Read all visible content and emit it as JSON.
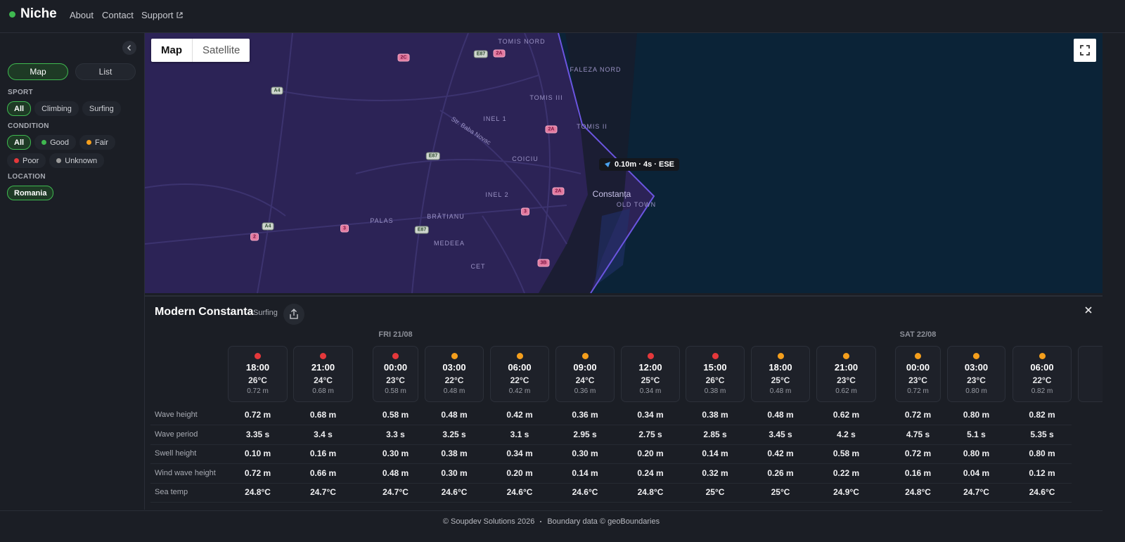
{
  "header": {
    "brand": "Niche",
    "nav": [
      "About",
      "Contact",
      "Support"
    ]
  },
  "sidebar": {
    "view_tabs": [
      "Map",
      "List"
    ],
    "filters": [
      {
        "label": "SPORT",
        "options": [
          {
            "name": "All"
          },
          {
            "name": "Climbing"
          },
          {
            "name": "Surfing"
          }
        ]
      },
      {
        "label": "CONDITION",
        "options": [
          {
            "name": "All"
          },
          {
            "name": "Good",
            "color": "#3fb950"
          },
          {
            "name": "Fair",
            "color": "#f59f1c"
          },
          {
            "name": "Poor",
            "color": "#e5383b"
          },
          {
            "name": "Unknown",
            "color": "#9a9a9a"
          }
        ]
      },
      {
        "label": "LOCATION",
        "options": [
          {
            "name": "Romania"
          }
        ]
      }
    ]
  },
  "map": {
    "tabs": [
      "Map",
      "Satellite"
    ],
    "places": [
      "TOMIS NORD",
      "FALEZA NORD",
      "TOMIS III",
      "INEL 1",
      "TOMIS II",
      "COICIU",
      "Constanța",
      "OLD TOWN",
      "INEL 2",
      "PALAS",
      "BRĂTIANU",
      "MEDEEA",
      "CET",
      "Str. Baba Novac"
    ],
    "road_shields": [
      "E87",
      "2A",
      "2C",
      "A4",
      "2A",
      "E87",
      "2A",
      "3",
      "A4",
      "3",
      "E87",
      "2",
      "3B"
    ],
    "tooltip": "0.10m · 4s · ESE"
  },
  "spot": {
    "name": "Modern Constanta",
    "sport": "Surfing",
    "days": [
      "FRI 21/08",
      "SAT 22/08"
    ],
    "slots": [
      {
        "time": "18:00",
        "temp": "26°C",
        "wave": "0.72 m",
        "color": "#e5383b"
      },
      {
        "time": "21:00",
        "temp": "24°C",
        "wave": "0.68 m",
        "color": "#e5383b"
      },
      {
        "time": "00:00",
        "temp": "23°C",
        "wave": "0.58 m",
        "color": "#e5383b"
      },
      {
        "time": "03:00",
        "temp": "22°C",
        "wave": "0.48 m",
        "color": "#f59f1c"
      },
      {
        "time": "06:00",
        "temp": "22°C",
        "wave": "0.42 m",
        "color": "#f59f1c"
      },
      {
        "time": "09:00",
        "temp": "24°C",
        "wave": "0.36 m",
        "color": "#f59f1c"
      },
      {
        "time": "12:00",
        "temp": "25°C",
        "wave": "0.34 m",
        "color": "#e5383b"
      },
      {
        "time": "15:00",
        "temp": "26°C",
        "wave": "0.38 m",
        "color": "#e5383b"
      },
      {
        "time": "18:00",
        "temp": "25°C",
        "wave": "0.48 m",
        "color": "#f59f1c"
      },
      {
        "time": "21:00",
        "temp": "23°C",
        "wave": "0.62 m",
        "color": "#f59f1c"
      },
      {
        "time": "00:00",
        "temp": "23°C",
        "wave": "0.72 m",
        "color": "#f59f1c"
      },
      {
        "time": "03:00",
        "temp": "23°C",
        "wave": "0.80 m",
        "color": "#f59f1c"
      },
      {
        "time": "06:00",
        "temp": "22°C",
        "wave": "0.82 m",
        "color": "#f59f1c"
      }
    ],
    "rows": [
      {
        "label": "Wave height",
        "values": [
          "0.72 m",
          "0.68 m",
          "0.58 m",
          "0.48 m",
          "0.42 m",
          "0.36 m",
          "0.34 m",
          "0.38 m",
          "0.48 m",
          "0.62 m",
          "0.72 m",
          "0.80 m",
          "0.82 m"
        ]
      },
      {
        "label": "Wave period",
        "values": [
          "3.35 s",
          "3.4 s",
          "3.3 s",
          "3.25 s",
          "3.1 s",
          "2.95 s",
          "2.75 s",
          "2.85 s",
          "3.45 s",
          "4.2 s",
          "4.75 s",
          "5.1 s",
          "5.35 s"
        ]
      },
      {
        "label": "Swell height",
        "values": [
          "0.10 m",
          "0.16 m",
          "0.30 m",
          "0.38 m",
          "0.34 m",
          "0.30 m",
          "0.20 m",
          "0.14 m",
          "0.42 m",
          "0.58 m",
          "0.72 m",
          "0.80 m",
          "0.80 m"
        ]
      },
      {
        "label": "Wind wave height",
        "values": [
          "0.72 m",
          "0.66 m",
          "0.48 m",
          "0.30 m",
          "0.20 m",
          "0.14 m",
          "0.24 m",
          "0.32 m",
          "0.26 m",
          "0.22 m",
          "0.16 m",
          "0.04 m",
          "0.12 m"
        ]
      },
      {
        "label": "Sea temp",
        "values": [
          "24.8°C",
          "24.7°C",
          "24.7°C",
          "24.6°C",
          "24.6°C",
          "24.6°C",
          "24.8°C",
          "25°C",
          "25°C",
          "24.9°C",
          "24.8°C",
          "24.7°C",
          "24.6°C"
        ]
      }
    ]
  },
  "footer": [
    "© Soupdev Solutions 2026",
    "Boundary data © geoBoundaries"
  ]
}
